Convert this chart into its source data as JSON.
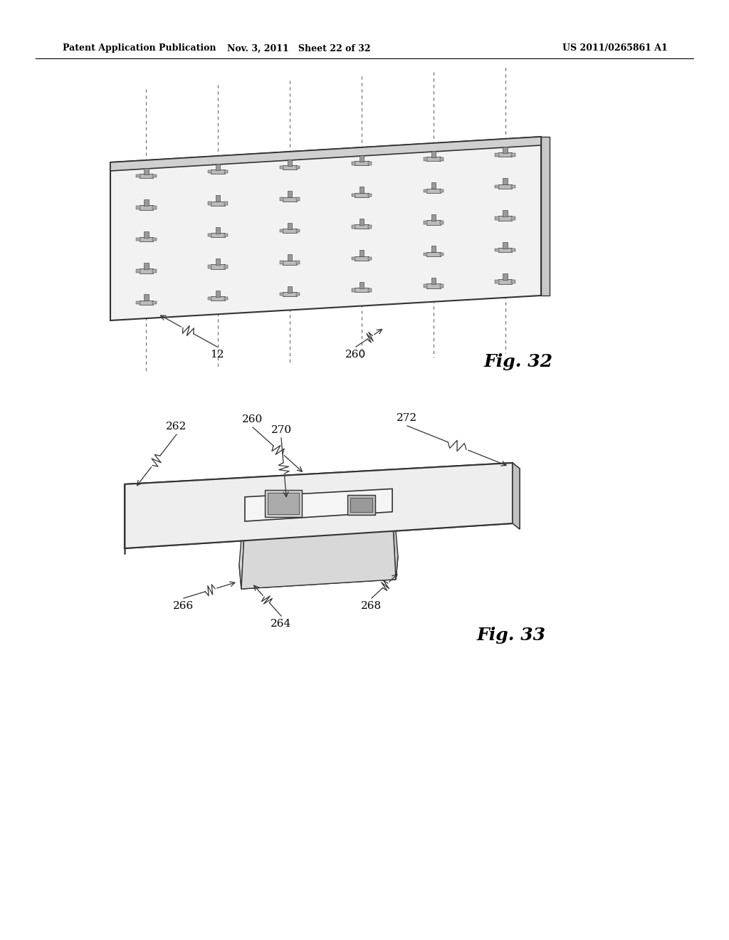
{
  "background_color": "#ffffff",
  "header_left": "Patent Application Publication",
  "header_mid": "Nov. 3, 2011   Sheet 22 of 32",
  "header_right": "US 2011/0265861 A1",
  "fig32_label": "Fig. 32",
  "fig33_label": "Fig. 33",
  "line_color": "#333333",
  "light_gray": "#e8e8e8",
  "mid_gray": "#cccccc",
  "dark_gray": "#999999",
  "panel_color": "#f0f0f0",
  "box_top_color": "#e0e0e0",
  "box_side_color": "#c8c8c8",
  "box_front_color": "#d8d8d8",
  "flange_color": "#eeeeee"
}
